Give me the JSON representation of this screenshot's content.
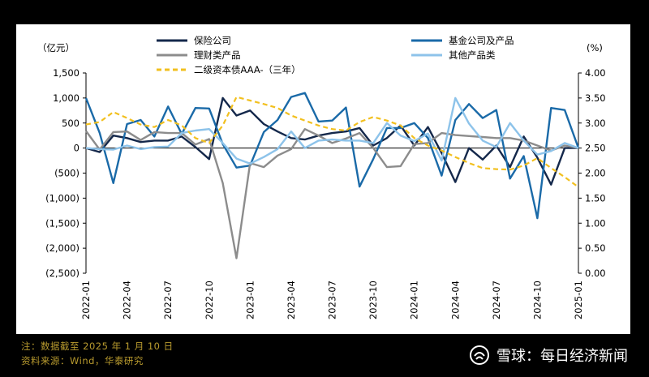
{
  "chart_data": {
    "type": "line",
    "title": "",
    "left_axis_label": "（亿元）",
    "right_axis_label": "(%)",
    "ylim_left": [
      -2500,
      1500
    ],
    "left_ticks": [
      "1,500",
      "1,000",
      "500",
      "0",
      "(500)",
      "(1,000)",
      "(1,500)",
      "(2,000)",
      "(2,500)"
    ],
    "ylim_right": [
      0.0,
      4.0
    ],
    "right_ticks": [
      "4.00",
      "3.50",
      "3.00",
      "2.50",
      "2.00",
      "1.50",
      "1.00",
      "0.50",
      "0.00"
    ],
    "x": [
      "2022-01",
      "2022-02",
      "2022-03",
      "2022-04",
      "2022-05",
      "2022-06",
      "2022-07",
      "2022-08",
      "2022-09",
      "2022-10",
      "2022-11",
      "2022-12",
      "2023-01",
      "2023-02",
      "2023-03",
      "2023-04",
      "2023-05",
      "2023-06",
      "2023-07",
      "2023-08",
      "2023-09",
      "2023-10",
      "2023-11",
      "2023-12",
      "2024-01",
      "2024-02",
      "2024-03",
      "2024-04",
      "2024-05",
      "2024-06",
      "2024-07",
      "2024-08",
      "2024-09",
      "2024-10",
      "2024-11",
      "2024-12",
      "2025-01"
    ],
    "x_tick_labels": [
      "2022-01",
      "2022-04",
      "2022-07",
      "2022-10",
      "2023-01",
      "2023-04",
      "2023-07",
      "2023-10",
      "2024-01",
      "2024-04",
      "2024-07",
      "2024-10",
      "2025-01"
    ],
    "series": [
      {
        "name": "保险公司",
        "axis": "left",
        "color": "#14284b",
        "style": "solid",
        "values": [
          0,
          -80,
          250,
          200,
          120,
          150,
          150,
          230,
          20,
          -220,
          1000,
          650,
          750,
          480,
          330,
          200,
          170,
          250,
          300,
          330,
          400,
          50,
          200,
          450,
          50,
          420,
          -100,
          -680,
          0,
          -230,
          50,
          -380,
          230,
          -190,
          -730,
          0,
          0
        ]
      },
      {
        "name": "基金公司及产品",
        "axis": "left",
        "color": "#1a6aa8",
        "style": "solid",
        "values": [
          1000,
          300,
          -700,
          480,
          560,
          230,
          830,
          280,
          800,
          790,
          80,
          -390,
          -350,
          320,
          560,
          1020,
          1100,
          530,
          550,
          810,
          -770,
          -220,
          400,
          400,
          500,
          200,
          -550,
          560,
          880,
          600,
          760,
          -610,
          -160,
          -1400,
          800,
          760,
          0
        ]
      },
      {
        "name": "理财类产品",
        "axis": "left",
        "color": "#8c8c8c",
        "style": "solid",
        "values": [
          340,
          -30,
          320,
          330,
          160,
          320,
          300,
          300,
          70,
          180,
          -700,
          -2200,
          -300,
          -380,
          -150,
          -20,
          380,
          250,
          100,
          190,
          300,
          0,
          -380,
          -360,
          80,
          100,
          300,
          260,
          240,
          220,
          200,
          200,
          150,
          50,
          -50,
          50,
          0
        ]
      },
      {
        "name": "其他产品类",
        "axis": "left",
        "color": "#8dc3ea",
        "style": "solid",
        "values": [
          0,
          -20,
          -30,
          50,
          -20,
          20,
          30,
          300,
          350,
          380,
          100,
          -210,
          -310,
          -180,
          -20,
          330,
          0,
          150,
          170,
          150,
          150,
          100,
          500,
          250,
          140,
          290,
          -250,
          1000,
          490,
          150,
          20,
          500,
          150,
          -130,
          -60,
          100,
          0
        ]
      },
      {
        "name": "二级资本债AAA-（三年）",
        "axis": "right",
        "color": "#f2c01f",
        "style": "dashed",
        "values": [
          2.97,
          3.02,
          3.22,
          3.1,
          2.97,
          2.92,
          3.06,
          2.95,
          2.7,
          2.6,
          2.95,
          3.52,
          3.45,
          3.38,
          3.3,
          3.15,
          3.05,
          2.95,
          2.88,
          2.85,
          3.02,
          3.12,
          3.05,
          2.95,
          2.7,
          2.55,
          2.45,
          2.32,
          2.2,
          2.1,
          2.08,
          2.07,
          2.15,
          2.3,
          2.1,
          1.92,
          1.72
        ]
      }
    ]
  },
  "footnotes": {
    "note": "注：数据截至 2025 年 1 月 10 日",
    "source": "资料来源：Wind，华泰研究"
  },
  "watermark": {
    "text": "雪球：每日经济新闻"
  }
}
